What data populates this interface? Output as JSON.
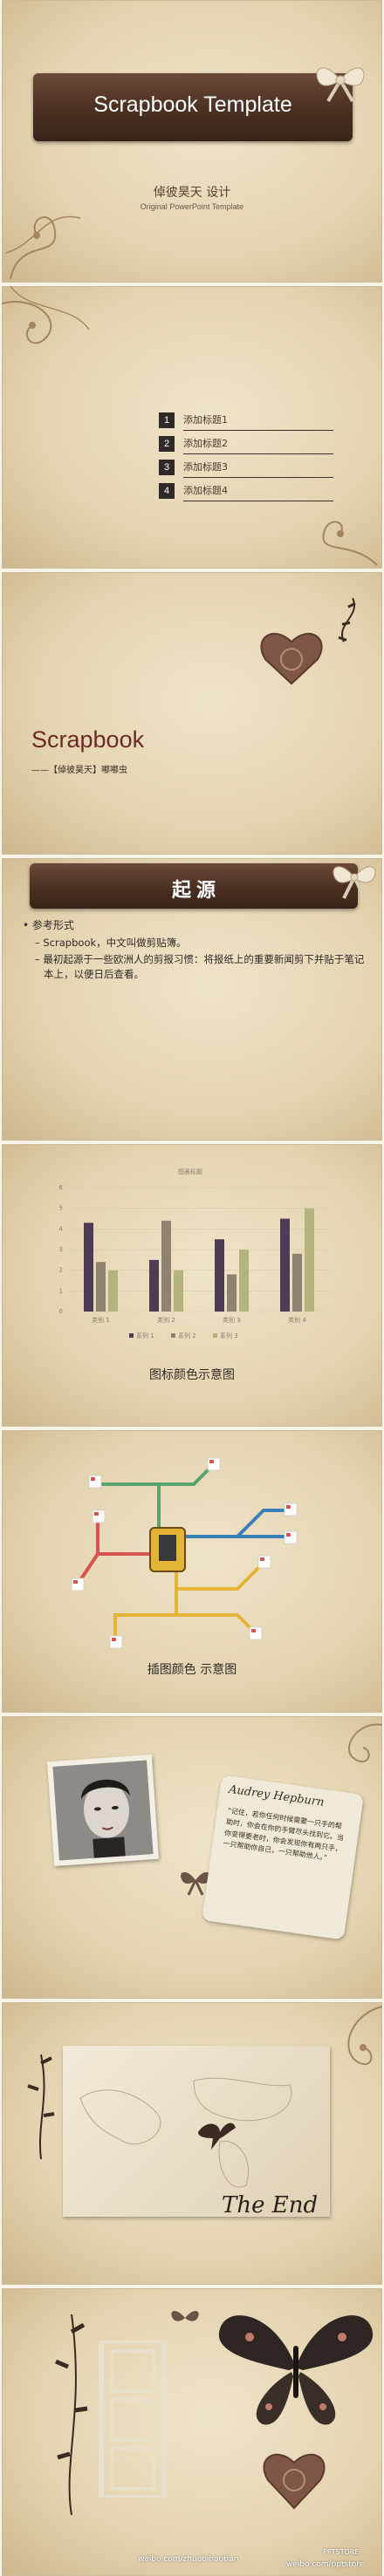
{
  "slides": {
    "cover": {
      "title": "Scrapbook Template",
      "author": "倬彼昊天 设计",
      "subtitle": "Original PowerPoint Template"
    },
    "toc": {
      "items": [
        {
          "num": "1",
          "label": "添加标题1"
        },
        {
          "num": "2",
          "label": "添加标题2"
        },
        {
          "num": "3",
          "label": "添加标题3"
        },
        {
          "num": "4",
          "label": "添加标题4"
        }
      ]
    },
    "section": {
      "title": "Scrapbook",
      "byline": "——【倬彼昊天】嘟嘟虫"
    },
    "origin": {
      "heading": "起 源",
      "bullet": "参考形式",
      "sub1": "Scrapbook，中文叫做剪贴簿。",
      "sub2": "最初起源于一些欧洲人的剪报习惯：将报纸上的重要新闻剪下并贴于笔记本上，以便日后查看。"
    },
    "chart_slide": {
      "caption": "图标颜色示意图"
    },
    "illustration": {
      "caption": "插图颜色 示意图"
    },
    "hepburn": {
      "signature": "Audrey Hepburn",
      "quote": "“记住，若你任何时候需要一只手的帮助时，你会在你的手臂尽头找到它。当你变得更老时，你会发现你有两只手，一只帮助你自己，一只帮助他人。”"
    },
    "end": {
      "text": "The End"
    },
    "footer": {
      "left": "weibo.com/zhuobihaotian",
      "right": "weibo.com/pptstore",
      "logo": "PPTSTORE"
    }
  },
  "chart_data": {
    "type": "bar",
    "title": "图表标题",
    "categories": [
      "类别 1",
      "类别 2",
      "类别 3",
      "类别 4"
    ],
    "series": [
      {
        "name": "系列 1",
        "values": [
          4.3,
          2.5,
          3.5,
          4.5
        ],
        "color": "#4e3b56"
      },
      {
        "name": "系列 2",
        "values": [
          2.4,
          4.4,
          1.8,
          2.8
        ],
        "color": "#8f8271"
      },
      {
        "name": "系列 3",
        "values": [
          2.0,
          2.0,
          3.0,
          5.0
        ],
        "color": "#b3b47d"
      }
    ],
    "ylim": [
      0,
      6
    ],
    "yticks": [
      "0",
      "1",
      "2",
      "3",
      "4",
      "5",
      "6"
    ],
    "grid": true,
    "legend": "bottom"
  }
}
